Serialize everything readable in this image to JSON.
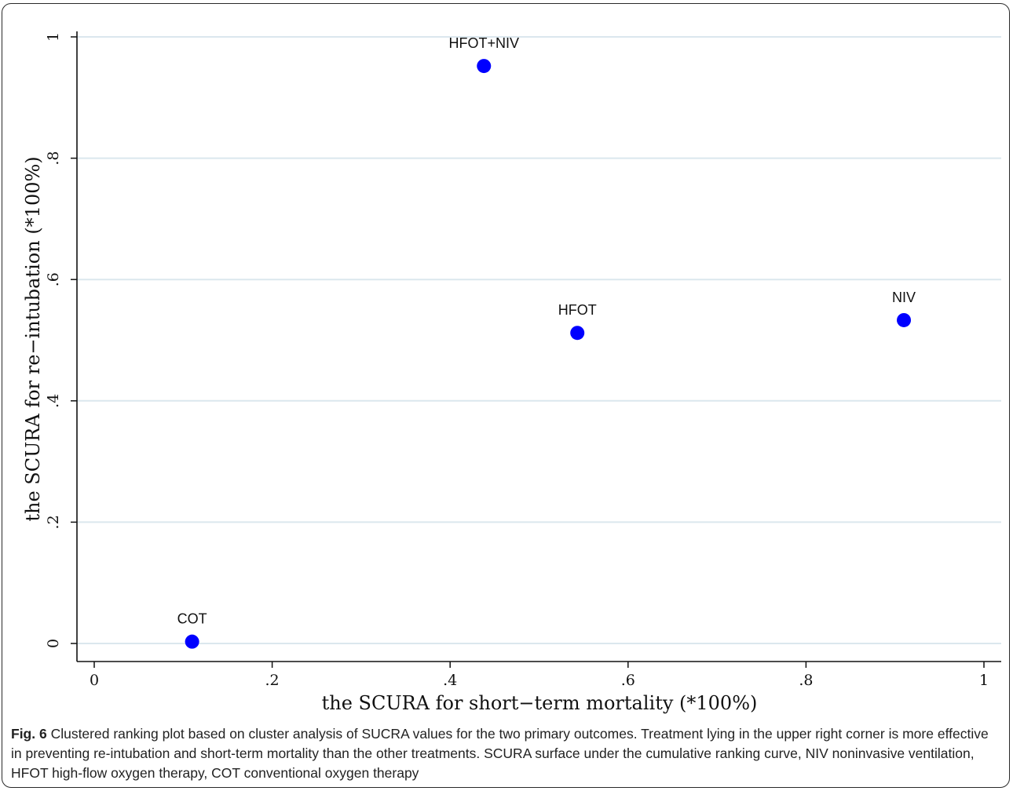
{
  "chart_data": {
    "type": "scatter",
    "xlabel": "the SCURA for short−term mortality (*100%)",
    "ylabel": "the SCURA for re−intubation (*100%)",
    "xlim": [
      0,
      1
    ],
    "ylim": [
      0,
      1
    ],
    "x_ticks": [
      "0",
      ".2",
      ".4",
      ".6",
      ".8",
      "1"
    ],
    "y_ticks": [
      "0",
      ".2",
      ".4",
      ".6",
      ".8",
      "1"
    ],
    "grid": "horizontal",
    "marker_color": "#0000ff",
    "points": [
      {
        "label": "HFOT+NIV",
        "x": 0.438,
        "y": 0.952
      },
      {
        "label": "HFOT",
        "x": 0.543,
        "y": 0.512
      },
      {
        "label": "NIV",
        "x": 0.91,
        "y": 0.533
      },
      {
        "label": "COT",
        "x": 0.11,
        "y": 0.003
      }
    ]
  },
  "caption": {
    "label": "Fig. 6",
    "text": " Clustered ranking plot based on cluster analysis of SUCRA values for the two primary outcomes. Treatment lying in the upper right corner is more effective in preventing re-intubation and short-term mortality than the other treatments. SCURA surface under the cumulative ranking curve, NIV noninvasive ventilation, HFOT high-flow oxygen therapy, COT conventional oxygen therapy"
  }
}
